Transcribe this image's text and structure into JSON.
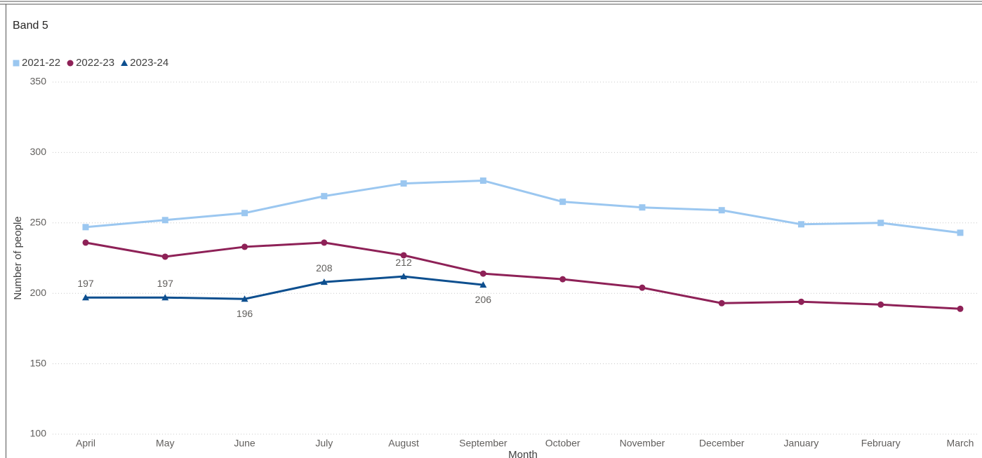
{
  "chart_data": {
    "type": "line",
    "title": "Band 5",
    "x_label": "Month",
    "y_label": "Number of people",
    "categories": [
      "April",
      "May",
      "June",
      "July",
      "August",
      "September",
      "October",
      "November",
      "December",
      "January",
      "February",
      "March"
    ],
    "series": [
      {
        "name": "2021-22",
        "color": "#9bc7f0",
        "marker": "square",
        "values": [
          247,
          252,
          257,
          269,
          278,
          280,
          265,
          261,
          259,
          249,
          250,
          243
        ]
      },
      {
        "name": "2022-23",
        "color": "#8e2157",
        "marker": "circle",
        "values": [
          236,
          226,
          233,
          236,
          227,
          214,
          210,
          204,
          193,
          194,
          192,
          189
        ]
      },
      {
        "name": "2023-24",
        "color": "#0d4f8f",
        "marker": "triangle",
        "data_labels": true,
        "values": [
          197,
          197,
          196,
          208,
          212,
          206,
          null,
          null,
          null,
          null,
          null,
          null
        ]
      }
    ],
    "ylim": [
      100,
      350
    ],
    "yticks": [
      100,
      150,
      200,
      250,
      300,
      350
    ],
    "grid": true
  }
}
